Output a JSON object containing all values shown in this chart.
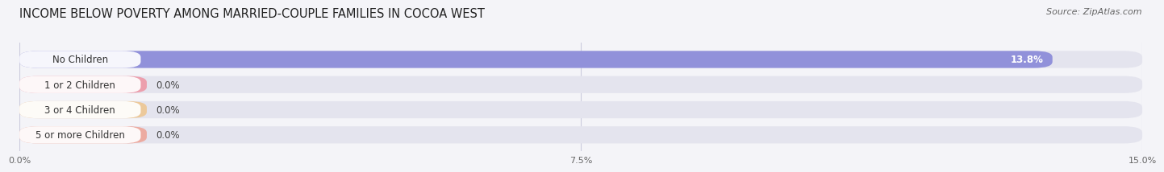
{
  "title": "INCOME BELOW POVERTY AMONG MARRIED-COUPLE FAMILIES IN COCOA WEST",
  "source": "Source: ZipAtlas.com",
  "categories": [
    "No Children",
    "1 or 2 Children",
    "3 or 4 Children",
    "5 or more Children"
  ],
  "values": [
    13.8,
    0.0,
    0.0,
    0.0
  ],
  "bar_colors": [
    "#8888d8",
    "#f08898",
    "#f0c080",
    "#f09888"
  ],
  "xlim": [
    0,
    15.0
  ],
  "xticks": [
    0.0,
    7.5,
    15.0
  ],
  "xtick_labels": [
    "0.0%",
    "7.5%",
    "15.0%"
  ],
  "background_color": "#f4f4f8",
  "bar_bg_color": "#e4e4ee",
  "title_fontsize": 10.5,
  "label_fontsize": 8.5,
  "value_fontsize": 8.5,
  "source_fontsize": 8
}
